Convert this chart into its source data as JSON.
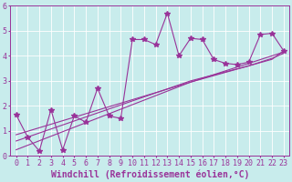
{
  "x_data": [
    0,
    1,
    2,
    3,
    4,
    5,
    6,
    7,
    8,
    9,
    10,
    11,
    12,
    13,
    14,
    15,
    16,
    17,
    18,
    19,
    20,
    21,
    22,
    23
  ],
  "y_main": [
    1.65,
    0.75,
    0.2,
    1.85,
    0.25,
    1.6,
    1.35,
    2.7,
    1.6,
    1.5,
    4.65,
    4.65,
    4.45,
    5.7,
    4.0,
    4.7,
    4.65,
    3.85,
    3.7,
    3.65,
    3.75,
    4.85,
    4.9,
    4.2
  ],
  "y_trend1": [
    0.25,
    0.43,
    0.61,
    0.79,
    0.97,
    1.15,
    1.33,
    1.51,
    1.69,
    1.87,
    2.05,
    2.23,
    2.41,
    2.59,
    2.77,
    2.95,
    3.1,
    3.25,
    3.4,
    3.55,
    3.7,
    3.85,
    4.0,
    4.15
  ],
  "y_trend2": [
    0.6,
    0.76,
    0.92,
    1.08,
    1.24,
    1.4,
    1.56,
    1.72,
    1.88,
    2.04,
    2.2,
    2.36,
    2.52,
    2.68,
    2.84,
    3.0,
    3.12,
    3.24,
    3.36,
    3.48,
    3.6,
    3.75,
    3.9,
    4.1
  ],
  "y_trend3": [
    0.85,
    0.99,
    1.13,
    1.27,
    1.41,
    1.55,
    1.69,
    1.83,
    1.97,
    2.11,
    2.25,
    2.39,
    2.53,
    2.67,
    2.81,
    2.95,
    3.08,
    3.21,
    3.34,
    3.47,
    3.6,
    3.73,
    3.86,
    4.2
  ],
  "line_color": "#993399",
  "bg_color": "#c8ecec",
  "grid_color": "#b0d8d8",
  "axis_color": "#993399",
  "xlabel": "Windchill (Refroidissement éolien,°C)",
  "xlim": [
    -0.5,
    23.5
  ],
  "ylim": [
    0,
    6
  ],
  "yticks": [
    0,
    1,
    2,
    3,
    4,
    5,
    6
  ],
  "xticks": [
    0,
    1,
    2,
    3,
    4,
    5,
    6,
    7,
    8,
    9,
    10,
    11,
    12,
    13,
    14,
    15,
    16,
    17,
    18,
    19,
    20,
    21,
    22,
    23
  ],
  "marker": "*",
  "marker_size": 4,
  "linewidth": 0.8,
  "font_size": 6,
  "xlabel_fontsize": 7
}
